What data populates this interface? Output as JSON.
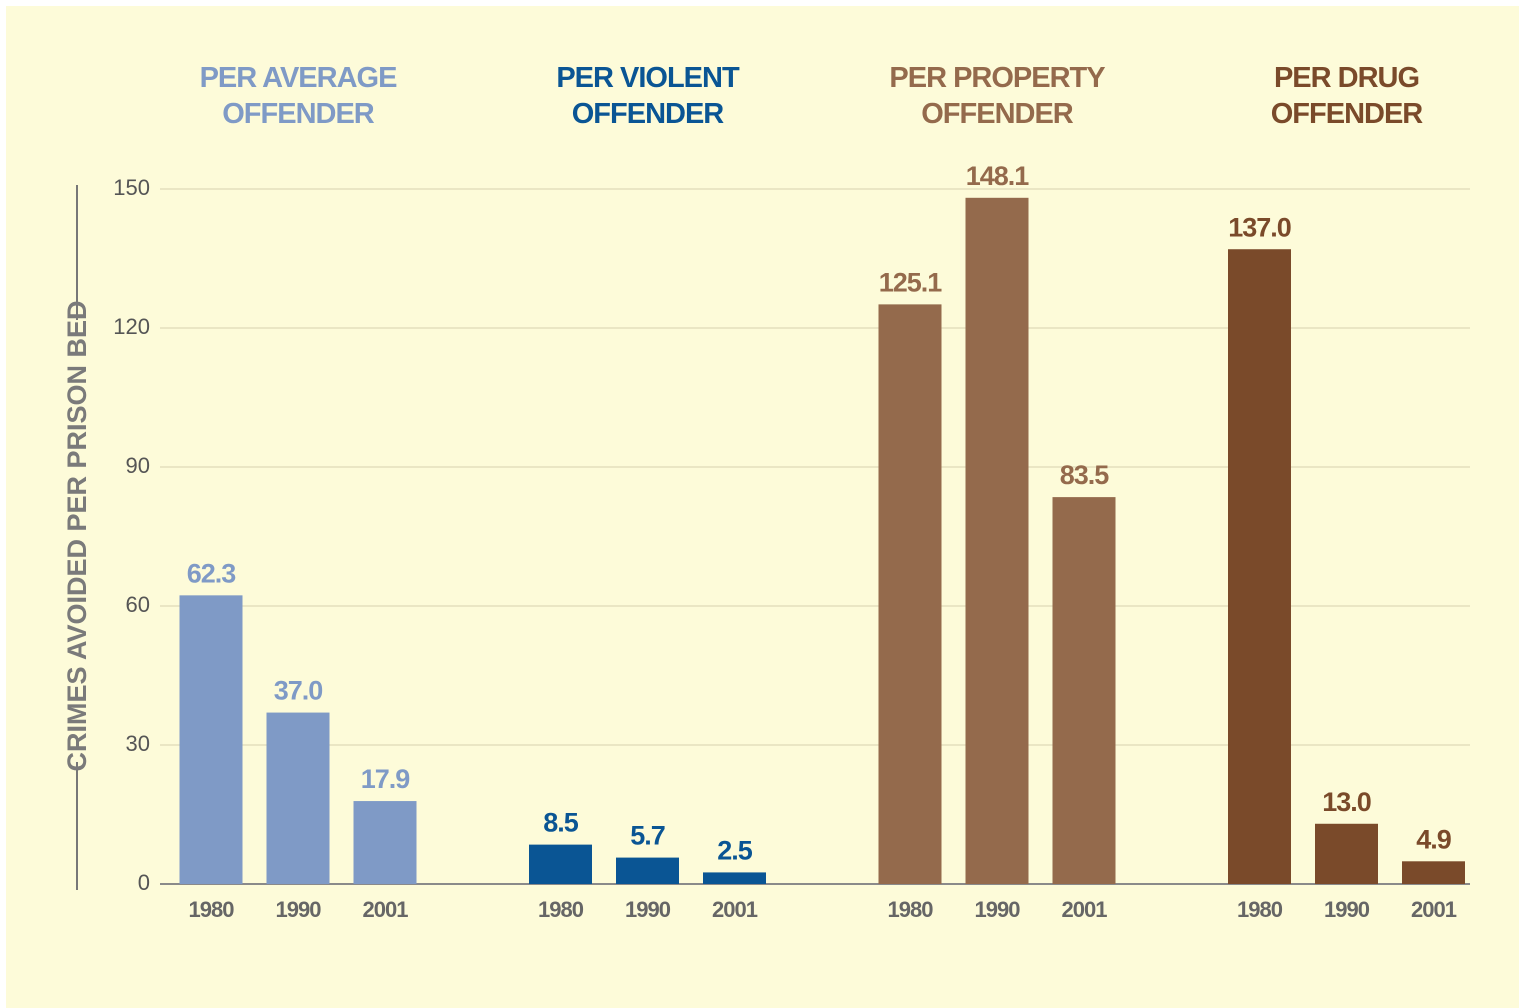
{
  "chart_data": {
    "type": "bar",
    "ylabel": "CRIMES AVOIDED PER PRISON BED",
    "categories": [
      "1980",
      "1990",
      "2001"
    ],
    "series": [
      {
        "name": "PER AVERAGE\nOFFENDER",
        "color": "#7f9ac6",
        "values": [
          62.3,
          37.0,
          17.9
        ],
        "value_labels": [
          "62.3",
          "37.0",
          "17.9"
        ]
      },
      {
        "name": "PER VIOLENT\nOFFENDER",
        "color": "#0a5594",
        "values": [
          8.5,
          5.7,
          2.5
        ],
        "value_labels": [
          "8.5",
          "5.7",
          "2.5"
        ]
      },
      {
        "name": "PER PROPERTY\nOFFENDER",
        "color": "#946a4c",
        "values": [
          125.1,
          148.1,
          83.5
        ],
        "value_labels": [
          "125.1",
          "148.1",
          "83.5"
        ]
      },
      {
        "name": "PER DRUG\nOFFENDER",
        "color": "#7a4a2a",
        "values": [
          137.0,
          13.0,
          4.9
        ],
        "value_labels": [
          "137.0",
          "13.0",
          "4.9"
        ]
      }
    ],
    "ylim": [
      0,
      150
    ],
    "yticks": [
      0,
      30,
      60,
      90,
      120,
      150
    ],
    "grid": true
  }
}
